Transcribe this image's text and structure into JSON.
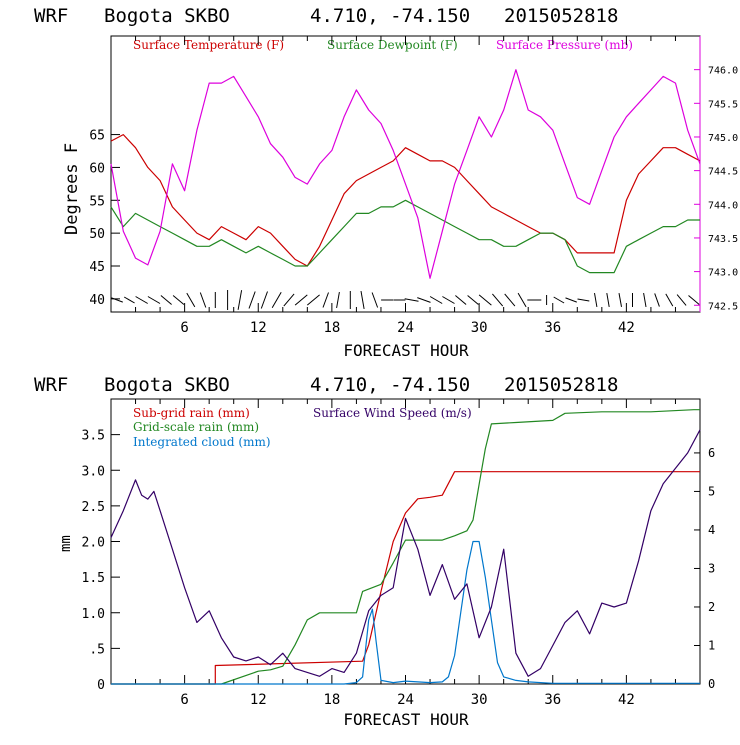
{
  "chart_data": [
    {
      "type": "line",
      "header": {
        "model": "WRF",
        "station": "Bogota SKBO",
        "coords": "4.710, -74.150",
        "run": "2015052818"
      },
      "xlabel": "FORECAST HOUR",
      "xlim": [
        0,
        48
      ],
      "xticks": [
        "6",
        "12",
        "18",
        "24",
        "30",
        "36",
        "42"
      ],
      "ylabel_left": "Degrees F",
      "ylim_left": [
        38,
        80
      ],
      "yticks_left": [
        "40",
        "45",
        "50",
        "55",
        "60",
        "65"
      ],
      "ylim_right": [
        742.4,
        746.5
      ],
      "yticks_right": [
        "742.5",
        "743.0",
        "743.5",
        "744.0",
        "744.5",
        "745.0",
        "745.5",
        "746.0"
      ],
      "colors": {
        "temperature": "#cc0000",
        "dewpoint": "#228822",
        "pressure": "#dd00dd"
      },
      "series": [
        {
          "name": "Surface Temperature (F)",
          "axis": "left",
          "color_key": "temperature",
          "x": [
            0,
            1,
            2,
            3,
            4,
            5,
            6,
            7,
            8,
            9,
            10,
            11,
            12,
            13,
            14,
            15,
            16,
            17,
            18,
            19,
            20,
            21,
            22,
            23,
            24,
            25,
            26,
            27,
            28,
            29,
            30,
            31,
            32,
            33,
            34,
            35,
            36,
            37,
            38,
            39,
            40,
            41,
            42,
            43,
            44,
            45,
            46,
            47,
            48
          ],
          "values": [
            64,
            65,
            63,
            60,
            58,
            54,
            52,
            50,
            49,
            51,
            50,
            49,
            51,
            50,
            48,
            46,
            45,
            48,
            52,
            56,
            58,
            59,
            60,
            61,
            63,
            62,
            61,
            61,
            60,
            58,
            56,
            54,
            53,
            52,
            51,
            50,
            50,
            49,
            47,
            47,
            47,
            47,
            55,
            59,
            61,
            63,
            63,
            62,
            61
          ]
        },
        {
          "name": "Surface Dewpoint (F)",
          "axis": "left",
          "color_key": "dewpoint",
          "x": [
            0,
            1,
            2,
            3,
            4,
            5,
            6,
            7,
            8,
            9,
            10,
            11,
            12,
            13,
            14,
            15,
            16,
            17,
            18,
            19,
            20,
            21,
            22,
            23,
            24,
            25,
            26,
            27,
            28,
            29,
            30,
            31,
            32,
            33,
            34,
            35,
            36,
            37,
            38,
            39,
            40,
            41,
            42,
            43,
            44,
            45,
            46,
            47,
            48
          ],
          "values": [
            54,
            51,
            53,
            52,
            51,
            50,
            49,
            48,
            48,
            49,
            48,
            47,
            48,
            47,
            46,
            45,
            45,
            47,
            49,
            51,
            53,
            53,
            54,
            54,
            55,
            54,
            53,
            52,
            51,
            50,
            49,
            49,
            48,
            48,
            49,
            50,
            50,
            49,
            45,
            44,
            44,
            44,
            48,
            49,
            50,
            51,
            51,
            52,
            52
          ]
        },
        {
          "name": "Surface Pressure (mb)",
          "axis": "right",
          "color_key": "pressure",
          "x": [
            0,
            1,
            2,
            3,
            4,
            5,
            6,
            7,
            8,
            9,
            10,
            11,
            12,
            13,
            14,
            15,
            16,
            17,
            18,
            19,
            20,
            21,
            22,
            23,
            24,
            25,
            26,
            27,
            28,
            29,
            30,
            31,
            32,
            33,
            34,
            35,
            36,
            37,
            38,
            39,
            40,
            41,
            42,
            43,
            44,
            45,
            46,
            47,
            48
          ],
          "values": [
            744.6,
            743.6,
            743.2,
            743.1,
            743.6,
            744.6,
            744.2,
            745.1,
            745.8,
            745.8,
            745.9,
            745.6,
            745.3,
            744.9,
            744.7,
            744.4,
            744.3,
            744.6,
            744.8,
            745.3,
            745.7,
            745.4,
            745.2,
            744.8,
            744.3,
            743.8,
            742.9,
            743.6,
            744.3,
            744.8,
            745.3,
            745.0,
            745.4,
            746.0,
            745.4,
            745.3,
            745.1,
            744.6,
            744.1,
            744.0,
            744.5,
            745.0,
            745.3,
            745.5,
            745.7,
            745.9,
            745.8,
            745.1,
            744.6
          ]
        }
      ],
      "wind_barbs": {
        "x": [
          0.5,
          1.5,
          2.5,
          3.5,
          4.5,
          5.5,
          6.5,
          7.5,
          8.5,
          9.5,
          10.5,
          11.5,
          12.5,
          13.5,
          14.5,
          15.5,
          16.5,
          17.5,
          18.5,
          19.5,
          20.5,
          21.5,
          22.5,
          23.5,
          24.5,
          25.5,
          26.5,
          27.5,
          28.5,
          29.5,
          30.5,
          31.5,
          32.5,
          33.5,
          34.5,
          35.5,
          36.5,
          37.5,
          38.5,
          39.5,
          40.5,
          41.5,
          42.5,
          43.5,
          44.5,
          45.5,
          46.5,
          47.5
        ],
        "direction_deg": [
          160,
          150,
          150,
          150,
          140,
          140,
          120,
          110,
          90,
          90,
          80,
          70,
          70,
          60,
          50,
          40,
          40,
          70,
          80,
          90,
          100,
          110,
          0,
          180,
          170,
          160,
          150,
          150,
          140,
          140,
          140,
          130,
          130,
          120,
          0,
          90,
          150,
          160,
          170,
          100,
          100,
          100,
          90,
          100,
          110,
          120,
          130,
          140
        ],
        "length": [
          12,
          12,
          14,
          14,
          14,
          14,
          16,
          16,
          16,
          20,
          20,
          18,
          18,
          18,
          16,
          16,
          16,
          16,
          16,
          18,
          18,
          16,
          12,
          12,
          14,
          14,
          14,
          14,
          14,
          14,
          16,
          16,
          16,
          16,
          14,
          10,
          12,
          12,
          12,
          14,
          14,
          14,
          14,
          14,
          14,
          14,
          14,
          14
        ]
      }
    },
    {
      "type": "line",
      "header": {
        "model": "WRF",
        "station": "Bogota SKBO",
        "coords": "4.710, -74.150",
        "run": "2015052818"
      },
      "xlabel": "FORECAST HOUR",
      "xlim": [
        0,
        48
      ],
      "xticks": [
        "6",
        "12",
        "18",
        "24",
        "30",
        "36",
        "42"
      ],
      "ylabel_left": "mm",
      "ylim_left": [
        0,
        4.0
      ],
      "yticks_left": [
        "0",
        ".5",
        "1.0",
        "1.5",
        "2.0",
        "2.5",
        "3.0",
        "3.5"
      ],
      "ylim_right": [
        0,
        7.4
      ],
      "yticks_right": [
        "0",
        "1",
        "2",
        "3",
        "4",
        "5",
        "6"
      ],
      "colors": {
        "subgrid": "#cc0000",
        "gridscale": "#228822",
        "cloud": "#0077cc",
        "wind": "#330066"
      },
      "series": [
        {
          "name": "Sub-grid rain (mm)",
          "axis": "left",
          "color_key": "subgrid",
          "x": [
            0,
            8.5,
            8.5,
            20.5,
            21,
            22,
            23,
            24,
            25,
            26,
            27,
            28,
            28.5,
            48
          ],
          "values": [
            0,
            0,
            0.26,
            0.32,
            0.55,
            1.3,
            2.0,
            2.4,
            2.6,
            2.62,
            2.65,
            2.98,
            2.98,
            2.98
          ]
        },
        {
          "name": "Grid-scale rain (mm)",
          "axis": "left",
          "color_key": "gridscale",
          "x": [
            0,
            9,
            12,
            13,
            14,
            15,
            16,
            17,
            20,
            20.5,
            22,
            23,
            24,
            25,
            26,
            27,
            28,
            29,
            29.5,
            30,
            30.5,
            31,
            33,
            36,
            37,
            40,
            44,
            47.5,
            48
          ],
          "values": [
            0,
            0,
            0.18,
            0.2,
            0.25,
            0.55,
            0.9,
            1.0,
            1.0,
            1.3,
            1.4,
            1.7,
            2.02,
            2.02,
            2.02,
            2.02,
            2.08,
            2.15,
            2.3,
            2.8,
            3.3,
            3.65,
            3.67,
            3.7,
            3.8,
            3.82,
            3.82,
            3.85,
            3.85
          ]
        },
        {
          "name": "Integrated cloud (mm)",
          "axis": "left",
          "color_key": "cloud",
          "x": [
            0,
            18,
            19,
            20,
            20.5,
            21,
            21.3,
            21.6,
            22,
            23,
            24,
            26,
            27,
            27.5,
            28,
            28.5,
            29,
            29.5,
            30,
            30.5,
            31,
            31.5,
            32,
            33,
            34,
            36,
            48
          ],
          "values": [
            0,
            0,
            0,
            0.02,
            0.1,
            0.9,
            1.05,
            0.6,
            0.05,
            0.02,
            0.04,
            0.02,
            0.03,
            0.1,
            0.4,
            1.0,
            1.6,
            2.0,
            2.0,
            1.5,
            0.9,
            0.3,
            0.1,
            0.05,
            0.03,
            0.01,
            0.01
          ]
        },
        {
          "name": "Surface Wind Speed (m/s)",
          "axis": "right",
          "color_key": "wind",
          "x": [
            0,
            1,
            2,
            2.5,
            3,
            3.5,
            4,
            5,
            6,
            7,
            8,
            9,
            10,
            11,
            12,
            13,
            14,
            15,
            16,
            17,
            18,
            19,
            20,
            21,
            22,
            23,
            24,
            25,
            26,
            27,
            28,
            29,
            30,
            31,
            32,
            33,
            34,
            35,
            36,
            37,
            38,
            39,
            40,
            41,
            42,
            43,
            44,
            45,
            46,
            47,
            48
          ],
          "values": [
            3.8,
            4.5,
            5.3,
            4.9,
            4.8,
            5.0,
            4.5,
            3.5,
            2.5,
            1.6,
            1.9,
            1.2,
            0.7,
            0.6,
            0.7,
            0.5,
            0.8,
            0.4,
            0.3,
            0.2,
            0.4,
            0.3,
            0.8,
            1.9,
            2.3,
            2.5,
            4.3,
            3.5,
            2.3,
            3.1,
            2.2,
            2.6,
            1.2,
            2.0,
            3.5,
            0.8,
            0.2,
            0.4,
            1.0,
            1.6,
            1.9,
            1.3,
            2.1,
            2.0,
            2.1,
            3.2,
            4.5,
            5.2,
            5.6,
            6.0,
            6.6
          ]
        }
      ]
    }
  ]
}
